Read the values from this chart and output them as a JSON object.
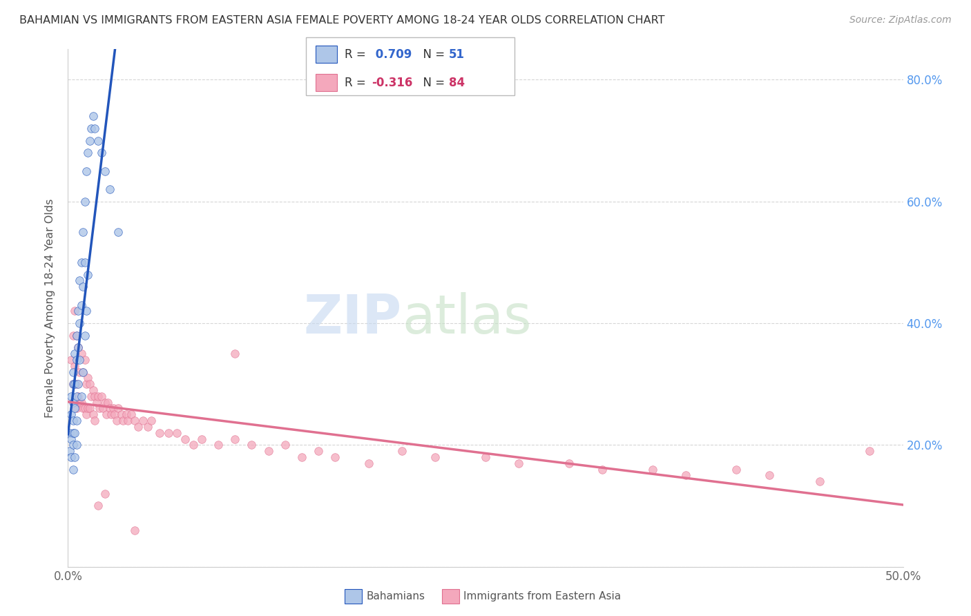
{
  "title": "BAHAMIAN VS IMMIGRANTS FROM EASTERN ASIA FEMALE POVERTY AMONG 18-24 YEAR OLDS CORRELATION CHART",
  "source": "Source: ZipAtlas.com",
  "ylabel": "Female Poverty Among 18-24 Year Olds",
  "xlim": [
    0,
    0.5
  ],
  "ylim": [
    0,
    0.85
  ],
  "xtick_positions": [
    0.0,
    0.1,
    0.2,
    0.3,
    0.4,
    0.5
  ],
  "xticklabels": [
    "0.0%",
    "",
    "",
    "",
    "",
    "50.0%"
  ],
  "ytick_positions": [
    0.0,
    0.2,
    0.4,
    0.6,
    0.8
  ],
  "yticklabels_right": [
    "",
    "20.0%",
    "40.0%",
    "60.0%",
    "80.0%"
  ],
  "bahamians_color": "#aec6e8",
  "immigrants_color": "#f4a8bc",
  "trendline_blue": "#2255bb",
  "trendline_pink": "#e07090",
  "R_blue": 0.709,
  "N_blue": 51,
  "R_pink": -0.316,
  "N_pink": 84,
  "legend_label_blue": "Bahamians",
  "legend_label_pink": "Immigrants from Eastern Asia",
  "bahamians_x": [
    0.001,
    0.001,
    0.002,
    0.002,
    0.002,
    0.002,
    0.003,
    0.003,
    0.003,
    0.003,
    0.003,
    0.003,
    0.003,
    0.004,
    0.004,
    0.004,
    0.004,
    0.004,
    0.005,
    0.005,
    0.005,
    0.005,
    0.005,
    0.006,
    0.006,
    0.006,
    0.007,
    0.007,
    0.007,
    0.008,
    0.008,
    0.008,
    0.009,
    0.009,
    0.009,
    0.01,
    0.01,
    0.01,
    0.011,
    0.011,
    0.012,
    0.012,
    0.013,
    0.014,
    0.015,
    0.016,
    0.018,
    0.02,
    0.022,
    0.025,
    0.03
  ],
  "bahamians_y": [
    0.22,
    0.19,
    0.28,
    0.25,
    0.21,
    0.18,
    0.32,
    0.3,
    0.27,
    0.24,
    0.22,
    0.2,
    0.16,
    0.35,
    0.3,
    0.26,
    0.22,
    0.18,
    0.38,
    0.34,
    0.28,
    0.24,
    0.2,
    0.42,
    0.36,
    0.3,
    0.47,
    0.4,
    0.34,
    0.5,
    0.43,
    0.28,
    0.55,
    0.46,
    0.32,
    0.6,
    0.5,
    0.38,
    0.65,
    0.42,
    0.68,
    0.48,
    0.7,
    0.72,
    0.74,
    0.72,
    0.7,
    0.68,
    0.65,
    0.62,
    0.55
  ],
  "immigrants_x": [
    0.002,
    0.003,
    0.003,
    0.004,
    0.004,
    0.005,
    0.005,
    0.005,
    0.006,
    0.006,
    0.007,
    0.007,
    0.008,
    0.008,
    0.009,
    0.009,
    0.01,
    0.01,
    0.011,
    0.011,
    0.012,
    0.012,
    0.013,
    0.013,
    0.014,
    0.015,
    0.015,
    0.016,
    0.016,
    0.017,
    0.018,
    0.019,
    0.02,
    0.021,
    0.022,
    0.023,
    0.024,
    0.025,
    0.026,
    0.027,
    0.028,
    0.029,
    0.03,
    0.032,
    0.033,
    0.035,
    0.036,
    0.038,
    0.04,
    0.042,
    0.045,
    0.048,
    0.05,
    0.055,
    0.06,
    0.065,
    0.07,
    0.075,
    0.08,
    0.09,
    0.1,
    0.11,
    0.12,
    0.13,
    0.14,
    0.15,
    0.16,
    0.18,
    0.2,
    0.22,
    0.25,
    0.27,
    0.3,
    0.32,
    0.35,
    0.37,
    0.4,
    0.42,
    0.45,
    0.48,
    0.018,
    0.022,
    0.04,
    0.1
  ],
  "immigrants_y": [
    0.34,
    0.38,
    0.3,
    0.42,
    0.33,
    0.38,
    0.3,
    0.26,
    0.36,
    0.28,
    0.32,
    0.27,
    0.35,
    0.27,
    0.32,
    0.26,
    0.34,
    0.26,
    0.3,
    0.25,
    0.31,
    0.26,
    0.3,
    0.26,
    0.28,
    0.29,
    0.25,
    0.28,
    0.24,
    0.27,
    0.28,
    0.26,
    0.28,
    0.26,
    0.27,
    0.25,
    0.27,
    0.26,
    0.25,
    0.26,
    0.25,
    0.24,
    0.26,
    0.25,
    0.24,
    0.25,
    0.24,
    0.25,
    0.24,
    0.23,
    0.24,
    0.23,
    0.24,
    0.22,
    0.22,
    0.22,
    0.21,
    0.2,
    0.21,
    0.2,
    0.21,
    0.2,
    0.19,
    0.2,
    0.18,
    0.19,
    0.18,
    0.17,
    0.19,
    0.18,
    0.18,
    0.17,
    0.17,
    0.16,
    0.16,
    0.15,
    0.16,
    0.15,
    0.14,
    0.19,
    0.1,
    0.12,
    0.06,
    0.35
  ]
}
